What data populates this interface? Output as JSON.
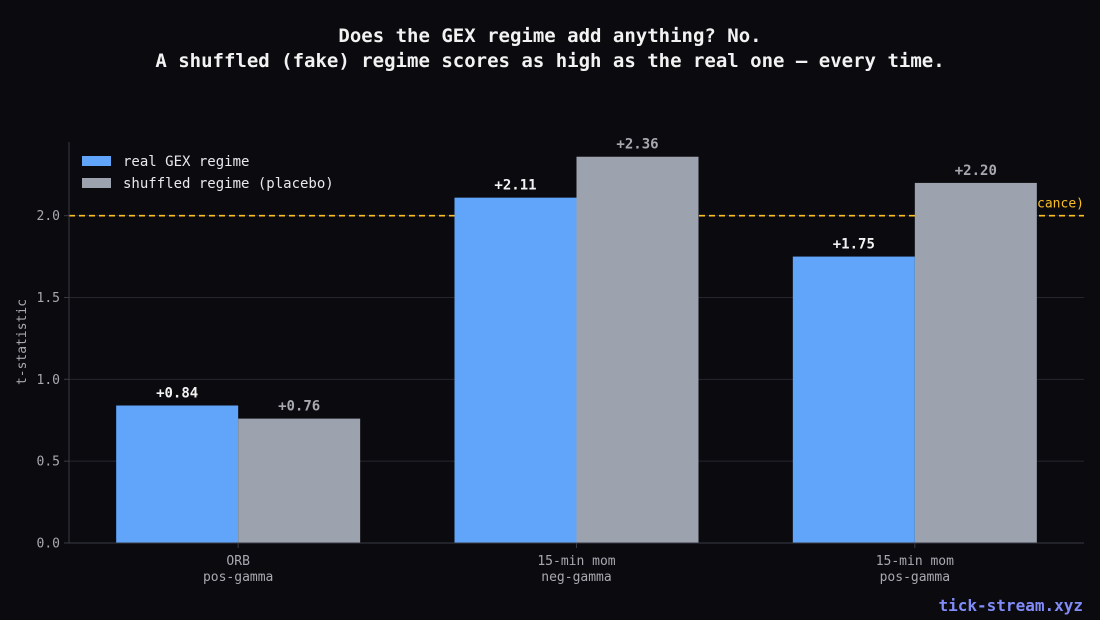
{
  "chart_data": {
    "type": "bar",
    "title": "Does the GEX regime add anything? No.",
    "subtitle": "A shuffled (fake) regime scores as high as the real one — every time.",
    "ylabel": "t-statistic",
    "xlabel": "",
    "ylim": [
      0,
      2.45
    ],
    "yticks": [
      0.0,
      0.5,
      1.0,
      1.5,
      2.0
    ],
    "ytick_labels": [
      "0.0",
      "0.5",
      "1.0",
      "1.5",
      "2.0"
    ],
    "grid": true,
    "legend_position": "top-left",
    "categories": [
      [
        "ORB",
        "pos-gamma"
      ],
      [
        "15-min mom",
        "neg-gamma"
      ],
      [
        "15-min mom",
        "pos-gamma"
      ]
    ],
    "series": [
      {
        "name": "real GEX regime",
        "color": "#60a5fa",
        "label_color": "#f2f2f2",
        "values": [
          0.84,
          2.11,
          1.75
        ],
        "labels": [
          "+0.84",
          "+2.11",
          "+1.75"
        ]
      },
      {
        "name": "shuffled regime (placebo)",
        "color": "#9ca3af",
        "label_color": "#a8a8b0",
        "values": [
          0.76,
          2.36,
          2.2
        ],
        "labels": [
          "+0.76",
          "+2.36",
          "+2.20"
        ]
      }
    ],
    "reference_line": {
      "value": 2.0,
      "label": "t=2 (significance)",
      "color": "#fbbf24"
    }
  },
  "watermark": {
    "text": "tick-stream.xyz",
    "color": "#818cf8"
  },
  "colors": {
    "background": "#0b0b0f",
    "grid": "#26262e",
    "axis": "#3a3a44"
  }
}
